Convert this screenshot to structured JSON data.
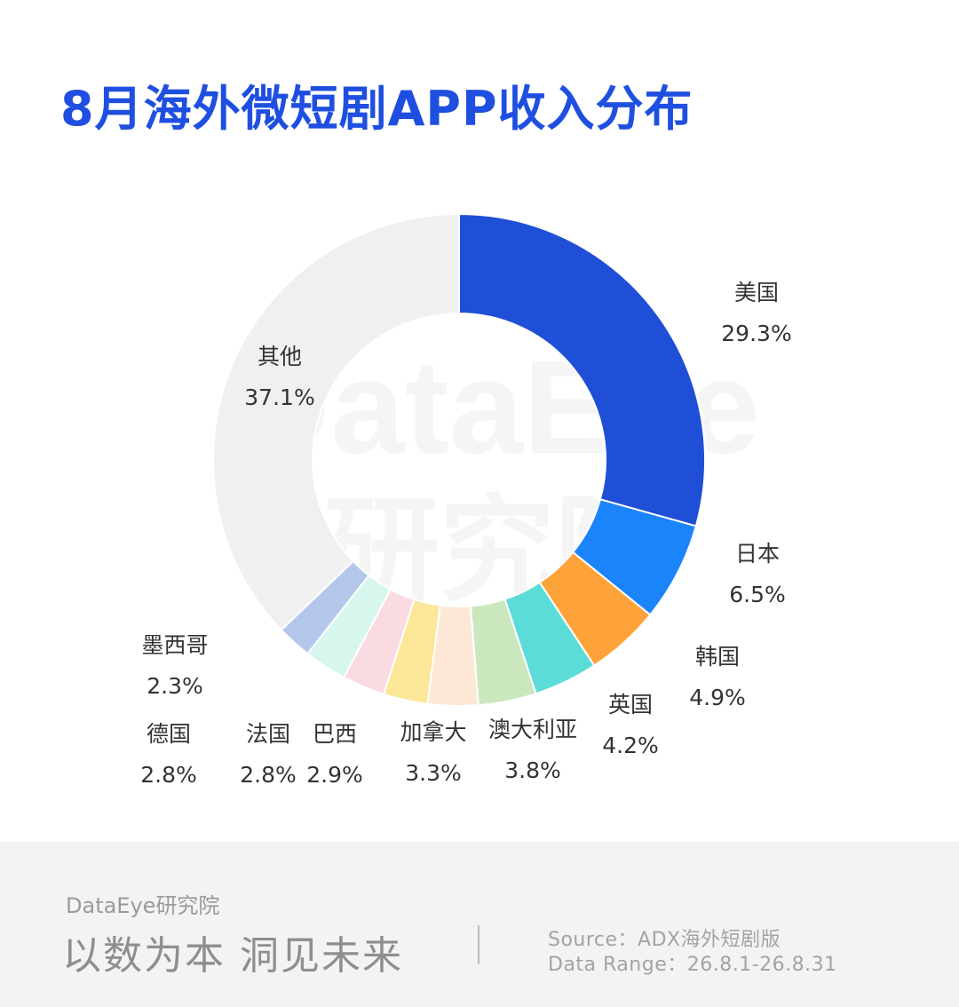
{
  "title": "8月海外微短剧APP收入分布",
  "watermark": {
    "line1": "DataEye",
    "line2": "研究院"
  },
  "chart_data": {
    "type": "pie",
    "subtype": "donut",
    "unit": "%",
    "slices": [
      {
        "label": "美国",
        "value": 29.3,
        "display": "29.3%",
        "color": "#1f4fd6"
      },
      {
        "label": "日本",
        "value": 6.5,
        "display": "6.5%",
        "color": "#1b84fb"
      },
      {
        "label": "韩国",
        "value": 4.9,
        "display": "4.9%",
        "color": "#fea33a"
      },
      {
        "label": "英国",
        "value": 4.2,
        "display": "4.2%",
        "color": "#5cdcd9"
      },
      {
        "label": "澳大利亚",
        "value": 3.8,
        "display": "3.8%",
        "color": "#cbe7bd"
      },
      {
        "label": "加拿大",
        "value": 3.3,
        "display": "3.3%",
        "color": "#fde8d6"
      },
      {
        "label": "巴西",
        "value": 2.9,
        "display": "2.9%",
        "color": "#fce698"
      },
      {
        "label": "法国",
        "value": 2.8,
        "display": "2.8%",
        "color": "#fadbe1"
      },
      {
        "label": "德国",
        "value": 2.8,
        "display": "2.8%",
        "color": "#d6f6ee"
      },
      {
        "label": "墨西哥",
        "value": 2.3,
        "display": "2.3%",
        "color": "#b4c7eb"
      },
      {
        "label": "其他",
        "value": 37.1,
        "display": "37.1%",
        "color": "#f0f0f0"
      }
    ]
  },
  "footer": {
    "brand": "DataEye研究院",
    "slogan": "以数为本 洞见未来",
    "source": "Source：ADX海外短剧版",
    "date_range": "Data Range：26.8.1-26.8.31"
  }
}
